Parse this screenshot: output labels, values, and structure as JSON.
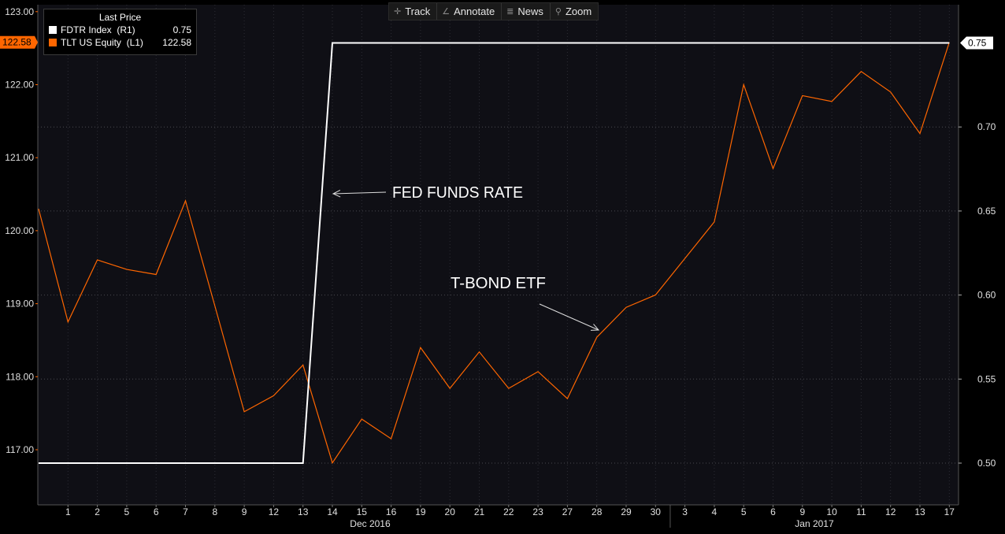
{
  "toolbar": {
    "track": "Track",
    "annotate": "Annotate",
    "news": "News",
    "zoom": "Zoom"
  },
  "legend": {
    "title": "Last Price",
    "items": [
      {
        "label": "FDTR Index  (R1)",
        "value": "0.75",
        "color": "#ffffff"
      },
      {
        "label": "TLT US Equity  (L1)",
        "value": "122.58",
        "color": "#ff6600"
      }
    ]
  },
  "annotations": [
    {
      "text": "FED FUNDS RATE"
    },
    {
      "text": "T-BOND ETF"
    }
  ],
  "chart_data": {
    "type": "line",
    "categories": [
      "1",
      "2",
      "5",
      "6",
      "7",
      "8",
      "9",
      "12",
      "13",
      "14",
      "15",
      "16",
      "19",
      "20",
      "21",
      "22",
      "23",
      "27",
      "28",
      "29",
      "30",
      "3",
      "4",
      "5",
      "6",
      "9",
      "10",
      "11",
      "12",
      "13",
      "17"
    ],
    "month_labels": [
      "Dec 2016",
      "Jan 2017"
    ],
    "series": [
      {
        "name": "TLT US Equity",
        "axis": "left",
        "color": "#ff6600",
        "start_value": 120.3,
        "values": [
          118.75,
          119.6,
          119.47,
          119.4,
          120.41,
          118.97,
          117.52,
          117.74,
          118.16,
          116.82,
          117.42,
          117.15,
          118.4,
          117.84,
          118.34,
          117.84,
          118.07,
          117.7,
          118.54,
          118.95,
          119.12,
          119.62,
          120.12,
          122.0,
          120.85,
          121.85,
          121.77,
          122.18,
          121.9,
          121.33,
          122.58
        ]
      },
      {
        "name": "FDTR Index",
        "axis": "right",
        "color": "#ffffff",
        "start_value": 0.5,
        "values": [
          0.5,
          0.5,
          0.5,
          0.5,
          0.5,
          0.5,
          0.5,
          0.5,
          0.5,
          0.75,
          0.75,
          0.75,
          0.75,
          0.75,
          0.75,
          0.75,
          0.75,
          0.75,
          0.75,
          0.75,
          0.75,
          0.75,
          0.75,
          0.75,
          0.75,
          0.75,
          0.75,
          0.75,
          0.75,
          0.75,
          0.75
        ]
      }
    ],
    "y_left": {
      "ticks": [
        "117.00",
        "118.00",
        "119.00",
        "120.00",
        "121.00",
        "122.00",
        "123.00"
      ],
      "last": "122.58"
    },
    "y_right": {
      "ticks": [
        "0.50",
        "0.55",
        "0.60",
        "0.65",
        "0.70"
      ],
      "last": "0.75"
    },
    "grid": true
  }
}
